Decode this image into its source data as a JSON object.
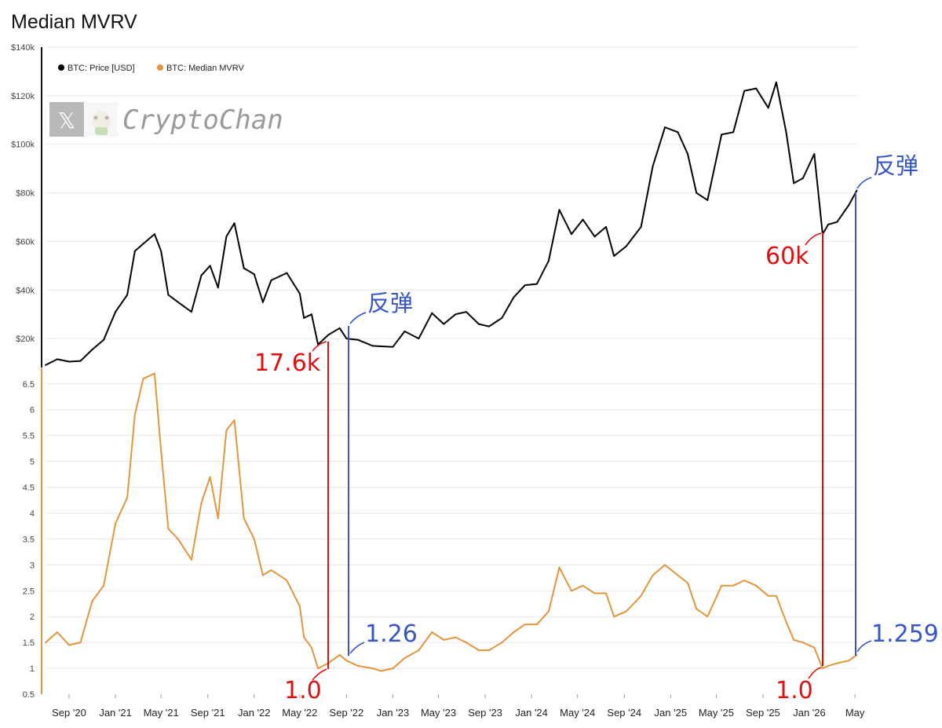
{
  "chart_title": "Median MVRV",
  "watermark": {
    "text": "CryptoChan",
    "x_logo": "𝕏"
  },
  "colors": {
    "price": "#000000",
    "mvrv": "#e3953d",
    "red": "#e01010",
    "blue": "#3555c8",
    "grid": "#e8e8e8"
  },
  "legend": [
    {
      "label": "BTC: Price [USD]",
      "color": "#000000"
    },
    {
      "label": "BTC: Median MVRV",
      "color": "#e3953d"
    }
  ],
  "annotations": {
    "price_low_2022": "17.6k",
    "price_rebound_2022": "反弹",
    "price_low_2026": "60k",
    "price_rebound_2026": "反弹",
    "mvrv_low_2022": "1.0",
    "mvrv_rebound_2022": "1.26",
    "mvrv_low_2026": "1.0",
    "mvrv_rebound_2026": "1.259"
  },
  "chart_data": [
    {
      "type": "line",
      "title": "",
      "series": [
        {
          "name": "BTC: Price [USD]"
        }
      ],
      "ylim": [
        0,
        140000
      ],
      "yticks": [
        "$20k",
        "$40k",
        "$60k",
        "$80k",
        "$100k",
        "$120k",
        "$140k"
      ],
      "xticks": [
        "Sep '20",
        "Jan '21",
        "May '21",
        "Sep '21",
        "Jan '22",
        "May '22",
        "Sep '22",
        "Jan '23",
        "May '23",
        "Sep '23",
        "Jan '24",
        "May '24",
        "Sep '24",
        "Jan '25",
        "May '25",
        "Sep '25",
        "Jan '26",
        "May"
      ],
      "x": [
        "2020-07-01",
        "2020-08-01",
        "2020-09-01",
        "2020-10-01",
        "2020-11-01",
        "2020-12-01",
        "2021-01-01",
        "2021-02-01",
        "2021-02-21",
        "2021-03-15",
        "2021-04-14",
        "2021-05-01",
        "2021-05-20",
        "2021-06-15",
        "2021-07-20",
        "2021-08-15",
        "2021-09-07",
        "2021-09-28",
        "2021-10-20",
        "2021-11-10",
        "2021-12-05",
        "2022-01-01",
        "2022-01-24",
        "2022-02-15",
        "2022-03-28",
        "2022-05-01",
        "2022-05-12",
        "2022-06-01",
        "2022-06-18",
        "2022-07-15",
        "2022-08-14",
        "2022-09-01",
        "2022-10-01",
        "2022-11-09",
        "2022-12-01",
        "2023-01-01",
        "2023-02-01",
        "2023-03-10",
        "2023-04-14",
        "2023-05-15",
        "2023-06-15",
        "2023-07-13",
        "2023-08-15",
        "2023-09-11",
        "2023-10-15",
        "2023-11-15",
        "2023-12-15",
        "2024-01-15",
        "2024-02-15",
        "2024-03-14",
        "2024-04-15",
        "2024-05-15",
        "2024-06-15",
        "2024-07-15",
        "2024-08-05",
        "2024-09-06",
        "2024-10-15",
        "2024-11-15",
        "2024-12-17",
        "2025-01-20",
        "2025-02-15",
        "2025-03-10",
        "2025-04-08",
        "2025-05-15",
        "2025-06-15",
        "2025-07-14",
        "2025-08-14",
        "2025-09-15",
        "2025-10-06",
        "2025-11-01",
        "2025-11-21",
        "2025-12-15",
        "2026-01-14",
        "2026-02-05",
        "2026-02-20",
        "2026-03-15",
        "2026-04-15",
        "2026-05-06"
      ],
      "y": [
        9100,
        11500,
        10500,
        10800,
        15500,
        19500,
        31000,
        38000,
        56000,
        59000,
        63000,
        56000,
        38000,
        35000,
        31000,
        46000,
        50000,
        41000,
        62000,
        67500,
        49000,
        46500,
        35000,
        44000,
        47000,
        38500,
        28500,
        30000,
        17600,
        21500,
        24300,
        20000,
        19500,
        17000,
        16800,
        16600,
        23000,
        20000,
        30500,
        26000,
        30000,
        31000,
        26000,
        25000,
        28500,
        37000,
        42000,
        42500,
        52000,
        73000,
        63000,
        69000,
        62000,
        66000,
        54000,
        58000,
        66000,
        91000,
        107000,
        105000,
        96000,
        80000,
        77000,
        104000,
        105000,
        122000,
        123000,
        115000,
        125500,
        105000,
        84000,
        86000,
        96000,
        63000,
        67000,
        68000,
        75000,
        81000
      ]
    },
    {
      "type": "line",
      "title": "",
      "series": [
        {
          "name": "BTC: Median MVRV"
        }
      ],
      "ylim": [
        0.5,
        6.8
      ],
      "yticks": [
        "0.5",
        "1",
        "1.5",
        "2",
        "2.5",
        "3",
        "3.5",
        "4",
        "4.5",
        "5",
        "5.5",
        "6",
        "6.5"
      ],
      "x": [
        "2020-07-01",
        "2020-08-01",
        "2020-09-01",
        "2020-10-01",
        "2020-11-01",
        "2020-12-01",
        "2021-01-01",
        "2021-02-01",
        "2021-02-21",
        "2021-03-15",
        "2021-04-14",
        "2021-05-01",
        "2021-05-20",
        "2021-06-15",
        "2021-07-20",
        "2021-08-15",
        "2021-09-07",
        "2021-09-28",
        "2021-10-20",
        "2021-11-10",
        "2021-12-05",
        "2022-01-01",
        "2022-01-24",
        "2022-02-15",
        "2022-03-28",
        "2022-05-01",
        "2022-05-12",
        "2022-06-01",
        "2022-06-18",
        "2022-07-15",
        "2022-08-14",
        "2022-09-01",
        "2022-10-01",
        "2022-11-09",
        "2022-12-01",
        "2023-01-01",
        "2023-02-01",
        "2023-03-10",
        "2023-04-14",
        "2023-05-15",
        "2023-06-15",
        "2023-07-13",
        "2023-08-15",
        "2023-09-11",
        "2023-10-15",
        "2023-11-15",
        "2023-12-15",
        "2024-01-15",
        "2024-02-15",
        "2024-03-14",
        "2024-04-15",
        "2024-05-15",
        "2024-06-15",
        "2024-07-15",
        "2024-08-05",
        "2024-09-06",
        "2024-10-15",
        "2024-11-15",
        "2024-12-17",
        "2025-01-20",
        "2025-02-15",
        "2025-03-10",
        "2025-04-08",
        "2025-05-15",
        "2025-06-15",
        "2025-07-14",
        "2025-08-14",
        "2025-09-15",
        "2025-10-06",
        "2025-11-01",
        "2025-11-21",
        "2025-12-15",
        "2026-01-14",
        "2026-02-05",
        "2026-02-20",
        "2026-03-15",
        "2026-04-15",
        "2026-05-06"
      ],
      "y": [
        1.5,
        1.7,
        1.45,
        1.5,
        2.3,
        2.6,
        3.8,
        4.3,
        5.9,
        6.6,
        6.7,
        5.2,
        3.7,
        3.5,
        3.1,
        4.2,
        4.7,
        3.9,
        5.6,
        5.8,
        3.9,
        3.5,
        2.8,
        2.9,
        2.7,
        2.2,
        1.6,
        1.4,
        1.0,
        1.1,
        1.26,
        1.15,
        1.05,
        1.0,
        0.95,
        1.0,
        1.2,
        1.35,
        1.7,
        1.55,
        1.6,
        1.5,
        1.35,
        1.35,
        1.5,
        1.7,
        1.85,
        1.85,
        2.1,
        2.95,
        2.5,
        2.6,
        2.45,
        2.45,
        2.0,
        2.1,
        2.4,
        2.8,
        3.0,
        2.8,
        2.65,
        2.15,
        2.0,
        2.6,
        2.6,
        2.7,
        2.6,
        2.4,
        2.4,
        1.9,
        1.55,
        1.5,
        1.4,
        1.0,
        1.05,
        1.1,
        1.15,
        1.259
      ]
    }
  ]
}
